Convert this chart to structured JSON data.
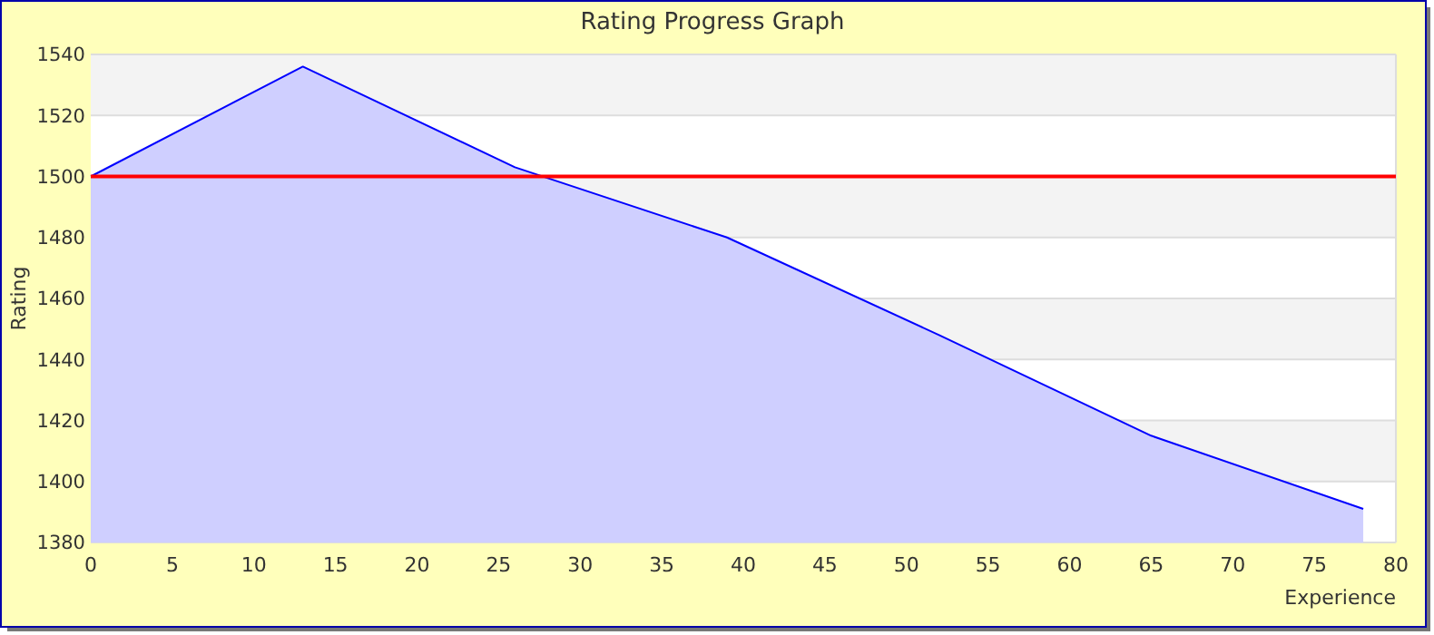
{
  "chart_data": {
    "type": "area",
    "title": "Rating Progress Graph",
    "xlabel": "Experience",
    "ylabel": "Rating",
    "x": [
      0,
      13,
      26,
      39,
      52,
      65,
      78
    ],
    "series": [
      {
        "color": "#0000ff",
        "values": [
          1500,
          1536,
          1503,
          1480,
          1448,
          1415,
          1391
        ]
      }
    ],
    "xlim": [
      0,
      80
    ],
    "xticks": [
      0,
      5,
      10,
      15,
      20,
      25,
      30,
      35,
      40,
      45,
      50,
      55,
      60,
      65,
      70,
      75,
      80
    ],
    "ylim": [
      1380,
      1540
    ],
    "yticks": [
      1380,
      1400,
      1420,
      1440,
      1460,
      1480,
      1500,
      1520,
      1540
    ],
    "ref_lines": [
      {
        "axis": "y",
        "value": 1500,
        "color": "#ff0000"
      }
    ],
    "grid": "y",
    "marker": "none",
    "line_style": "solid"
  }
}
